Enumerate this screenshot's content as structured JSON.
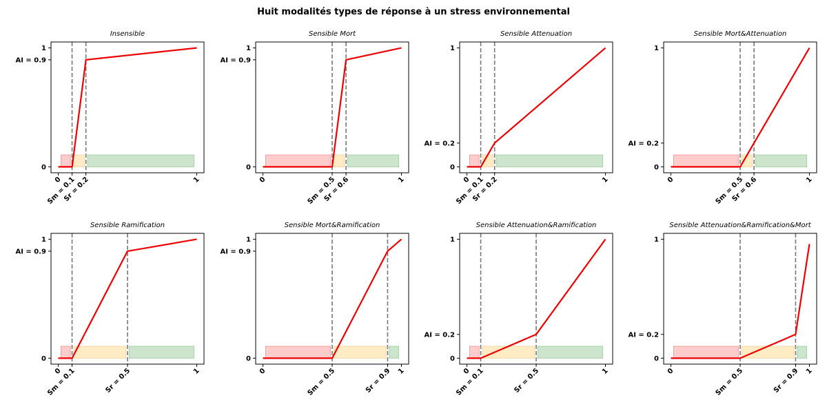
{
  "figure_title": "Huit modalités types de réponse à un stress environnemental",
  "colors": {
    "line": "#ee0000",
    "vline": "#777777",
    "zone_mort": "#ffcccc",
    "zone_mort_edge": "#f2a0a0",
    "zone_attenuation": "#ffebc4",
    "zone_attenuation_edge": "#f5d9a6",
    "zone_ramification": "#cce5cc",
    "zone_ramification_edge": "#a6d1a6"
  },
  "chart_data": [
    {
      "type": "line",
      "title": "Insensible",
      "xlim": [
        0,
        1
      ],
      "ylim": [
        0,
        1
      ],
      "sm": 0.1,
      "sr": 0.2,
      "ai": 0.9,
      "x": [
        0,
        0.1,
        0.2,
        1
      ],
      "y": [
        0,
        0,
        0.9,
        1
      ],
      "xtick_labels": [
        "0",
        "Sm = 0.1",
        "Sr = 0.2",
        "1"
      ],
      "ytick_labels": [
        "0",
        "AI = 0.9",
        "1"
      ]
    },
    {
      "type": "line",
      "title": "Sensible Mort",
      "xlim": [
        0,
        1
      ],
      "ylim": [
        0,
        1
      ],
      "sm": 0.5,
      "sr": 0.6,
      "ai": 0.9,
      "x": [
        0,
        0.5,
        0.6,
        1
      ],
      "y": [
        0,
        0,
        0.9,
        1
      ],
      "xtick_labels": [
        "0",
        "Sm = 0.5",
        "Sr = 0.6",
        "1"
      ],
      "ytick_labels": [
        "0",
        "AI = 0.9",
        "1"
      ]
    },
    {
      "type": "line",
      "title": "Sensible Attenuation",
      "xlim": [
        0,
        1
      ],
      "ylim": [
        0,
        1
      ],
      "sm": 0.1,
      "sr": 0.2,
      "ai": 0.2,
      "x": [
        0,
        0.1,
        0.2,
        1
      ],
      "y": [
        0,
        0,
        0.2,
        1
      ],
      "xtick_labels": [
        "0",
        "Sm = 0.1",
        "Sr = 0.2",
        "1"
      ],
      "ytick_labels": [
        "0",
        "AI = 0.2",
        "1"
      ]
    },
    {
      "type": "line",
      "title": "Sensible Mort&Attenuation",
      "xlim": [
        0,
        1
      ],
      "ylim": [
        0,
        1
      ],
      "sm": 0.5,
      "sr": 0.6,
      "ai": 0.2,
      "x": [
        0,
        0.5,
        0.6,
        1
      ],
      "y": [
        0,
        0,
        0.2,
        1
      ],
      "xtick_labels": [
        "0",
        "Sm = 0.5",
        "Sr = 0.6",
        "1"
      ],
      "ytick_labels": [
        "0",
        "AI = 0.2",
        "1"
      ]
    },
    {
      "type": "line",
      "title": "Sensible Ramification",
      "xlim": [
        0,
        1
      ],
      "ylim": [
        0,
        1
      ],
      "sm": 0.1,
      "sr": 0.5,
      "ai": 0.9,
      "x": [
        0,
        0.1,
        0.5,
        1
      ],
      "y": [
        0,
        0,
        0.9,
        1
      ],
      "xtick_labels": [
        "0",
        "Sm = 0.1",
        "Sr = 0.5",
        "1"
      ],
      "ytick_labels": [
        "0",
        "AI = 0.9",
        "1"
      ]
    },
    {
      "type": "line",
      "title": "Sensible Mort&Ramification",
      "xlim": [
        0,
        1
      ],
      "ylim": [
        0,
        1
      ],
      "sm": 0.5,
      "sr": 0.9,
      "ai": 0.9,
      "x": [
        0,
        0.5,
        0.9,
        1
      ],
      "y": [
        0,
        0,
        0.9,
        1
      ],
      "xtick_labels": [
        "0",
        "Sm = 0.5",
        "Sr = 0.9",
        "1"
      ],
      "ytick_labels": [
        "0",
        "AI = 0.9",
        "1"
      ]
    },
    {
      "type": "line",
      "title": "Sensible Attenuation&Ramification",
      "xlim": [
        0,
        1
      ],
      "ylim": [
        0,
        1
      ],
      "sm": 0.1,
      "sr": 0.5,
      "ai": 0.2,
      "x": [
        0,
        0.1,
        0.5,
        1
      ],
      "y": [
        0,
        0,
        0.2,
        1
      ],
      "xtick_labels": [
        "0",
        "Sm = 0.1",
        "Sr = 0.5",
        "1"
      ],
      "ytick_labels": [
        "0",
        "AI = 0.2",
        "1"
      ]
    },
    {
      "type": "line",
      "title": "Sensible Attenuation&Ramification&Mort",
      "xlim": [
        0,
        1
      ],
      "ylim": [
        0,
        1
      ],
      "sm": 0.5,
      "sr": 0.9,
      "ai": 0.2,
      "x": [
        0,
        0.5,
        0.9,
        1
      ],
      "y": [
        0,
        0,
        0.2,
        0.96
      ],
      "xtick_labels": [
        "0",
        "Sm = 0.5",
        "Sr = 0.9",
        "1"
      ],
      "ytick_labels": [
        "0",
        "AI = 0.2",
        "1"
      ]
    }
  ]
}
